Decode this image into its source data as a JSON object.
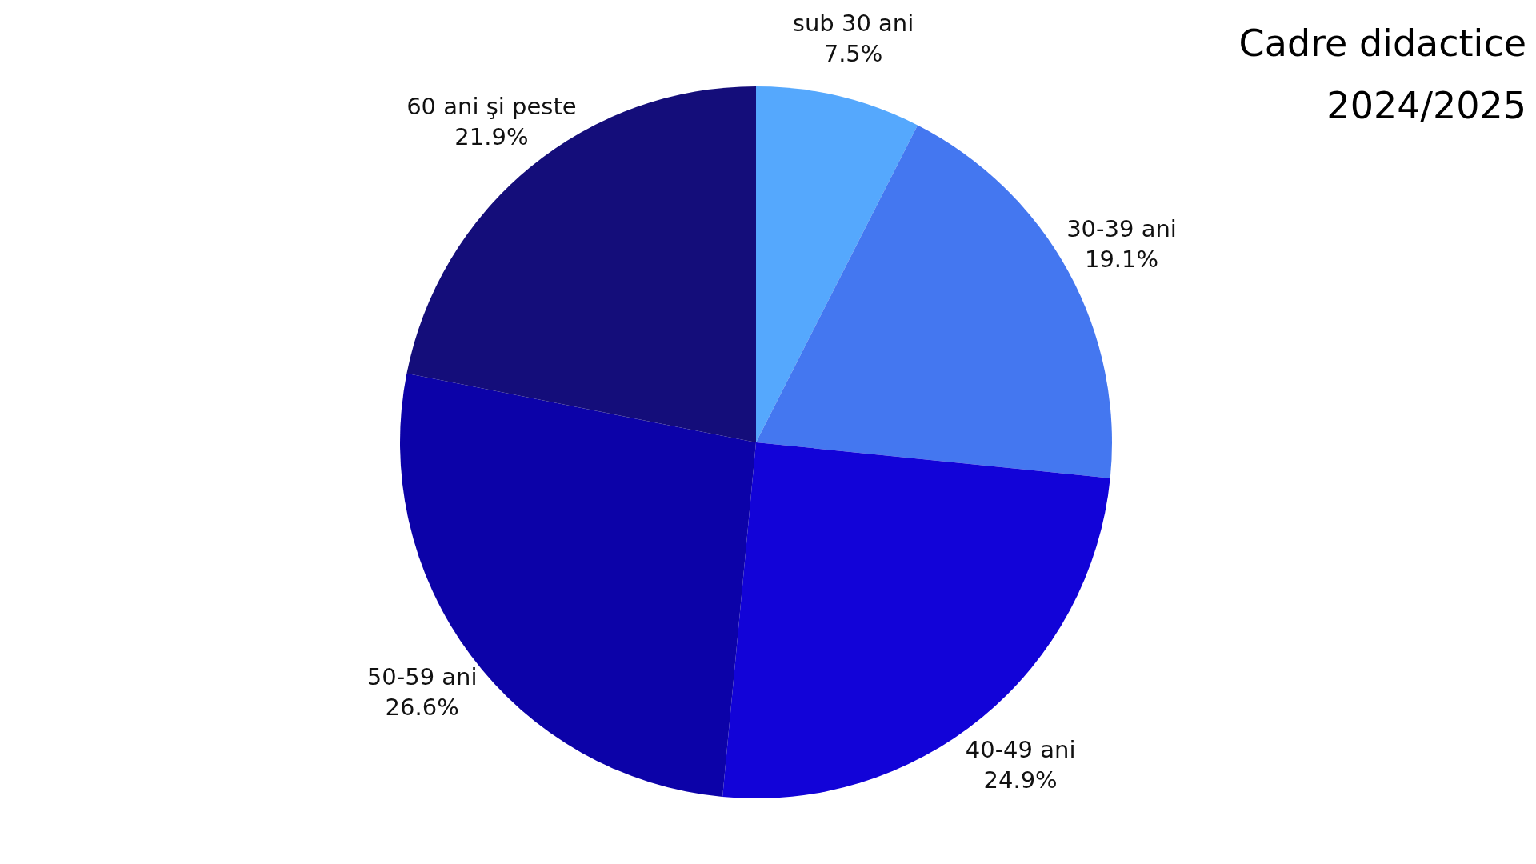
{
  "chart_data": {
    "type": "pie",
    "title": "Cadre didactice\n2024/2025",
    "categories": [
      "sub 30 ani",
      "30-39 ani",
      "40-49 ani",
      "50-59 ani",
      "60 ani şi peste"
    ],
    "values": [
      7.5,
      19.1,
      24.9,
      26.6,
      21.9
    ],
    "value_labels": [
      "7.5%",
      "19.1%",
      "24.9%",
      "26.6%",
      "21.9%"
    ],
    "colors": [
      "#55a8fd",
      "#4477f0",
      "#1203d8",
      "#0c02a8",
      "#140d7a"
    ]
  }
}
